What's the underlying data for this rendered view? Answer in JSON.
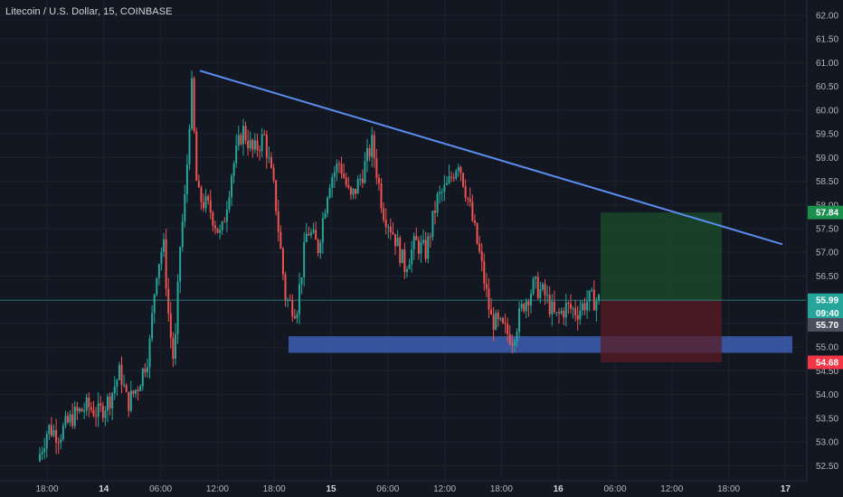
{
  "header": {
    "symbol_title": "Litecoin / U.S. Dollar, 15, COINBASE"
  },
  "colors": {
    "background": "#131722",
    "grid": "#1e222d",
    "up_candle": "#26a69a",
    "down_candle": "#ef5350",
    "trendline": "#5b8def",
    "support_zone": "#3d5fb4",
    "target_zone": "#1b4d2a",
    "stop_zone": "#5a1b24",
    "axis_text": "#b2b5be"
  },
  "chart_data": {
    "type": "candlestick",
    "price_axis": {
      "ylim": [
        52.3,
        62.3
      ],
      "ticks": [
        "62.00",
        "61.50",
        "61.00",
        "60.50",
        "60.00",
        "59.50",
        "59.00",
        "58.50",
        "58.00",
        "57.50",
        "57.00",
        "56.50",
        "56.00",
        "55.50",
        "55.00",
        "54.50",
        "54.00",
        "53.50",
        "53.00",
        "52.50"
      ]
    },
    "time_axis": {
      "ticks": [
        {
          "label": "18:00",
          "bold": false
        },
        {
          "label": "14",
          "bold": true
        },
        {
          "label": "06:00",
          "bold": false
        },
        {
          "label": "12:00",
          "bold": false
        },
        {
          "label": "18:00",
          "bold": false
        },
        {
          "label": "15",
          "bold": true
        },
        {
          "label": "06:00",
          "bold": false
        },
        {
          "label": "12:00",
          "bold": false
        },
        {
          "label": "18:00",
          "bold": false
        },
        {
          "label": "16",
          "bold": true
        },
        {
          "label": "06:00",
          "bold": false
        },
        {
          "label": "12:00",
          "bold": false
        },
        {
          "label": "18:00",
          "bold": false
        },
        {
          "label": "17",
          "bold": true
        }
      ]
    },
    "price_labels": [
      {
        "label": "57.84",
        "price": 57.84,
        "bg": "#1b8f4c",
        "fg": "#ffffff"
      },
      {
        "label": "55.99",
        "price": 55.99,
        "bg": "#26a69a",
        "fg": "#ffffff"
      },
      {
        "label": "09:40",
        "price": 55.72,
        "bg": "#26a69a",
        "fg": "#ffffff"
      },
      {
        "label": "55.70",
        "price": 55.47,
        "bg": "#4a4f5e",
        "fg": "#ffffff"
      },
      {
        "label": "54.68",
        "price": 54.68,
        "bg": "#f23645",
        "fg": "#ffffff"
      }
    ],
    "last_price": 55.99,
    "trendline": {
      "start": {
        "time": "13 ~08:30",
        "price": 60.83
      },
      "end": {
        "time": "16 ~21:30",
        "price": 57.17
      }
    },
    "support_zone": {
      "price_low": 54.88,
      "price_high": 55.23
    },
    "long_position": {
      "entry": 55.99,
      "target": 57.84,
      "stop": 54.68
    },
    "price_path": [
      {
        "t": 0.0,
        "p": 52.6
      },
      {
        "t": 0.015,
        "p": 53.3
      },
      {
        "t": 0.03,
        "p": 53.15
      },
      {
        "t": 0.05,
        "p": 53.55
      },
      {
        "t": 0.07,
        "p": 53.75
      },
      {
        "t": 0.085,
        "p": 53.6
      },
      {
        "t": 0.1,
        "p": 53.9
      },
      {
        "t": 0.115,
        "p": 54.5
      },
      {
        "t": 0.125,
        "p": 53.8
      },
      {
        "t": 0.14,
        "p": 54.2
      },
      {
        "t": 0.155,
        "p": 54.9
      },
      {
        "t": 0.165,
        "p": 56.6
      },
      {
        "t": 0.175,
        "p": 57.2
      },
      {
        "t": 0.183,
        "p": 55.5
      },
      {
        "t": 0.19,
        "p": 54.6
      },
      {
        "t": 0.198,
        "p": 57.1
      },
      {
        "t": 0.206,
        "p": 58.3
      },
      {
        "t": 0.214,
        "p": 60.6
      },
      {
        "t": 0.222,
        "p": 58.2
      },
      {
        "t": 0.24,
        "p": 57.9
      },
      {
        "t": 0.255,
        "p": 57.3
      },
      {
        "t": 0.27,
        "p": 58.7
      },
      {
        "t": 0.285,
        "p": 59.6
      },
      {
        "t": 0.3,
        "p": 59.1
      },
      {
        "t": 0.315,
        "p": 59.45
      },
      {
        "t": 0.33,
        "p": 58.2
      },
      {
        "t": 0.345,
        "p": 56.0
      },
      {
        "t": 0.36,
        "p": 55.8
      },
      {
        "t": 0.375,
        "p": 57.5
      },
      {
        "t": 0.39,
        "p": 57.1
      },
      {
        "t": 0.405,
        "p": 58.5
      },
      {
        "t": 0.42,
        "p": 58.9
      },
      {
        "t": 0.435,
        "p": 58.1
      },
      {
        "t": 0.45,
        "p": 58.6
      },
      {
        "t": 0.465,
        "p": 59.3
      },
      {
        "t": 0.48,
        "p": 57.9
      },
      {
        "t": 0.495,
        "p": 57.4
      },
      {
        "t": 0.51,
        "p": 56.7
      },
      {
        "t": 0.525,
        "p": 57.2
      },
      {
        "t": 0.54,
        "p": 57.0
      },
      {
        "t": 0.555,
        "p": 58.1
      },
      {
        "t": 0.57,
        "p": 58.4
      },
      {
        "t": 0.585,
        "p": 58.95
      },
      {
        "t": 0.6,
        "p": 58.0
      },
      {
        "t": 0.615,
        "p": 56.9
      },
      {
        "t": 0.63,
        "p": 55.6
      },
      {
        "t": 0.645,
        "p": 55.4
      },
      {
        "t": 0.66,
        "p": 55.2
      },
      {
        "t": 0.675,
        "p": 55.9
      },
      {
        "t": 0.69,
        "p": 56.3
      },
      {
        "t": 0.705,
        "p": 56.1
      },
      {
        "t": 0.72,
        "p": 55.6
      },
      {
        "t": 0.735,
        "p": 55.85
      },
      {
        "t": 0.75,
        "p": 55.75
      },
      {
        "t": 0.765,
        "p": 56.0
      },
      {
        "t": 0.78,
        "p": 55.99
      }
    ]
  }
}
